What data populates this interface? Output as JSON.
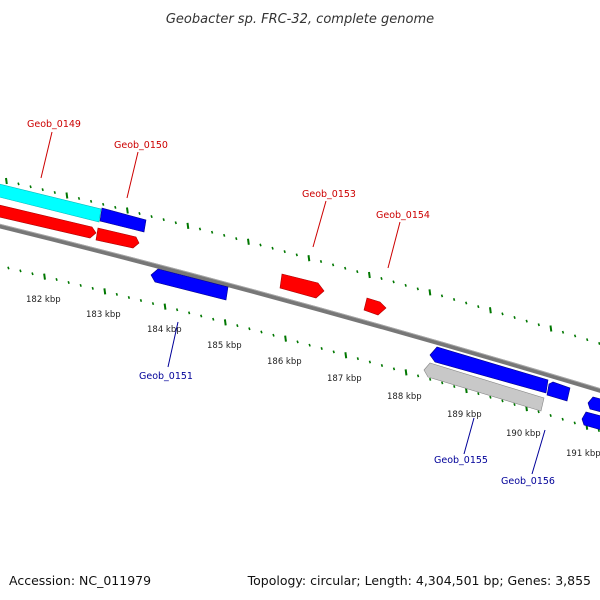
{
  "title": "Geobacter sp. FRC-32, complete genome",
  "footer": {
    "accession": "Accession: NC_011979",
    "summary": "Topology: circular; Length: 4,304,501 bp; Genes: 3,855"
  },
  "colors": {
    "forward_gene": "#ff0000",
    "reverse_gene": "#0000ff",
    "highlight_gene": "#00ffff",
    "pseudo_gene": "#c8c8c8",
    "backbone": "#777777",
    "ticks": "#007700",
    "label_forward": "#cc0000",
    "label_reverse": "#000099"
  },
  "kbp_labels": [
    "182 kbp",
    "183 kbp",
    "184 kbp",
    "185 kbp",
    "186 kbp",
    "187 kbp",
    "188 kbp",
    "189 kbp",
    "190 kbp",
    "191 kbp"
  ],
  "gene_labels": [
    {
      "id": "geob-0149",
      "text": "Geob_0149",
      "strand": "forward"
    },
    {
      "id": "geob-0150",
      "text": "Geob_0150",
      "strand": "forward"
    },
    {
      "id": "geob-0153",
      "text": "Geob_0153",
      "strand": "forward"
    },
    {
      "id": "geob-0154",
      "text": "Geob_0154",
      "strand": "forward"
    },
    {
      "id": "geob-0151",
      "text": "Geob_0151",
      "strand": "reverse"
    },
    {
      "id": "geob-0155",
      "text": "Geob_0155",
      "strand": "reverse"
    },
    {
      "id": "geob-0156",
      "text": "Geob_0156",
      "strand": "reverse"
    }
  ]
}
